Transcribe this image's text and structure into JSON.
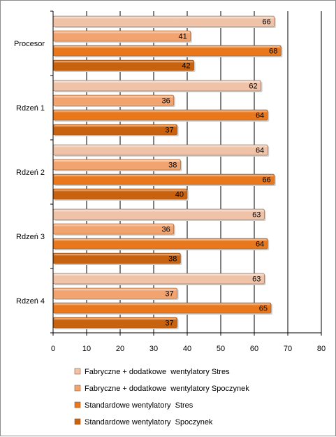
{
  "chart_data": {
    "type": "bar",
    "orientation": "horizontal",
    "categories": [
      "Procesor",
      "Rdzeń 1",
      "Rdzeń 2",
      "Rdzeń 3",
      "Rdzeń 4"
    ],
    "series": [
      {
        "name": "Fabryczne + dodatkowe  wentylatory Stres",
        "values": [
          66,
          62,
          64,
          63,
          63
        ],
        "color": "#f0c3a8"
      },
      {
        "name": "Fabryczne + dodatkowe  wentylatory Spoczynek",
        "values": [
          41,
          36,
          38,
          36,
          37
        ],
        "color": "#f2a470"
      },
      {
        "name": "Standardowe wentylatory  Stres",
        "values": [
          68,
          64,
          66,
          64,
          65
        ],
        "color": "#e9771b"
      },
      {
        "name": "Standardowe wentylatory  Spoczynek",
        "values": [
          42,
          37,
          40,
          38,
          37
        ],
        "color": "#c8620f"
      }
    ],
    "x_ticks": [
      "0",
      "10",
      "20",
      "30",
      "40",
      "50",
      "60",
      "70",
      "80"
    ],
    "xlim": [
      0,
      80
    ],
    "grid": true,
    "data_labels": true,
    "legend_position": "bottom",
    "title": "",
    "xlabel": "",
    "ylabel": ""
  }
}
